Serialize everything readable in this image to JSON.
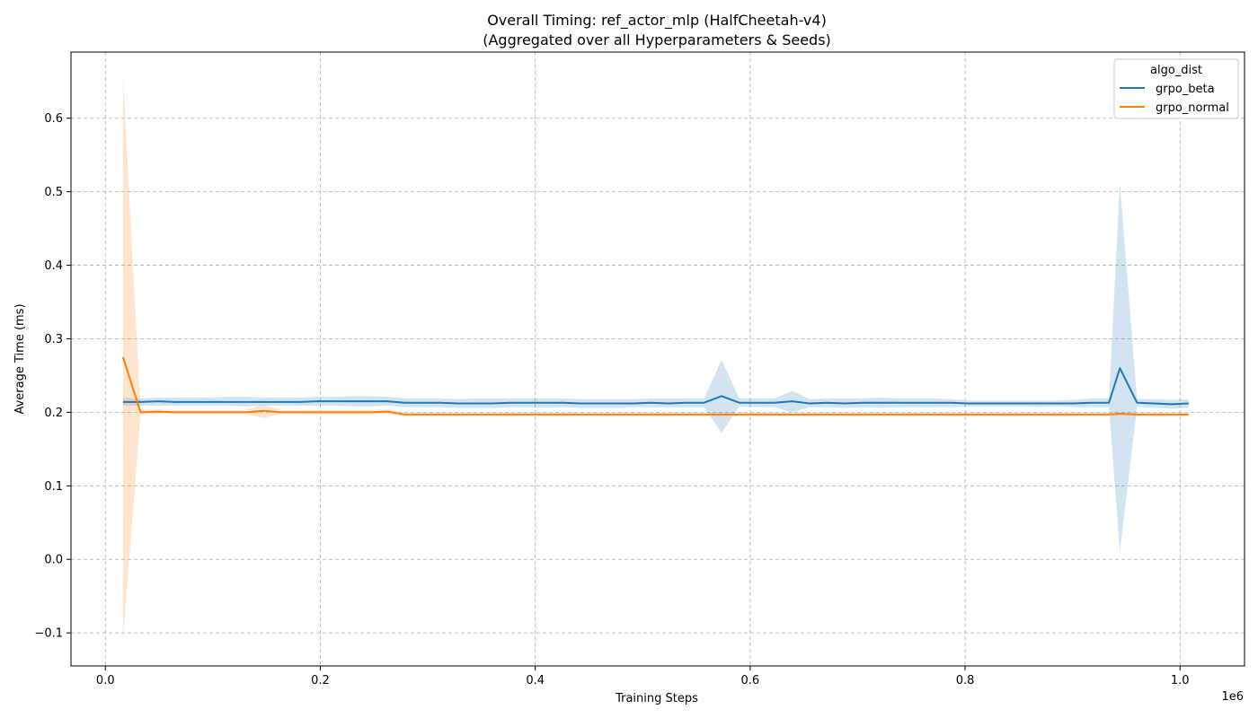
{
  "chart_data": {
    "type": "line",
    "title": "Overall Timing: ref_actor_mlp (HalfCheetah-v4)",
    "subtitle": "(Aggregated over all Hyperparameters & Seeds)",
    "xlabel": "Training Steps",
    "ylabel": "Average Time (ms)",
    "x_offset_label": "1e6",
    "xlim": [
      -32000,
      1060000
    ],
    "ylim": [
      -0.145,
      0.69
    ],
    "x_ticks": [
      0,
      200000,
      400000,
      600000,
      800000,
      1000000
    ],
    "x_tick_labels": [
      "0.0",
      "0.2",
      "0.4",
      "0.6",
      "0.8",
      "1.0"
    ],
    "y_ticks": [
      -0.1,
      0.0,
      0.1,
      0.2,
      0.3,
      0.4,
      0.5,
      0.6
    ],
    "y_tick_labels": [
      "−0.1",
      "0.0",
      "0.1",
      "0.2",
      "0.3",
      "0.4",
      "0.5",
      "0.6"
    ],
    "grid": true,
    "legend": {
      "title": "algo_dist",
      "placement": "top-right"
    },
    "series": [
      {
        "name": "grpo_beta",
        "color": "#1f77b4",
        "band_color": "#1f77b4",
        "x": [
          16384,
          32768,
          49152,
          65536,
          81920,
          98304,
          114688,
          131072,
          147456,
          163840,
          180224,
          196608,
          212992,
          229376,
          245760,
          262144,
          278528,
          294912,
          311296,
          327680,
          344064,
          360448,
          376832,
          393216,
          409600,
          425984,
          442368,
          458752,
          475136,
          491520,
          507904,
          524288,
          540672,
          557056,
          573440,
          589824,
          606208,
          622592,
          638976,
          655360,
          671744,
          688128,
          704512,
          720896,
          737280,
          753664,
          770048,
          786432,
          802816,
          819200,
          835584,
          851968,
          868352,
          884736,
          901120,
          917504,
          933888,
          944000,
          960000,
          976000,
          992000,
          1008000
        ],
        "y": [
          0.214,
          0.214,
          0.215,
          0.214,
          0.214,
          0.214,
          0.214,
          0.214,
          0.214,
          0.214,
          0.214,
          0.215,
          0.215,
          0.215,
          0.215,
          0.215,
          0.213,
          0.213,
          0.213,
          0.212,
          0.212,
          0.212,
          0.213,
          0.213,
          0.213,
          0.213,
          0.212,
          0.212,
          0.212,
          0.212,
          0.213,
          0.212,
          0.213,
          0.213,
          0.222,
          0.213,
          0.213,
          0.213,
          0.215,
          0.212,
          0.213,
          0.212,
          0.213,
          0.213,
          0.213,
          0.213,
          0.213,
          0.213,
          0.212,
          0.212,
          0.212,
          0.212,
          0.212,
          0.212,
          0.212,
          0.213,
          0.213,
          0.26,
          0.213,
          0.212,
          0.211,
          0.212
        ],
        "ci_low": [
          0.209,
          0.209,
          0.209,
          0.209,
          0.209,
          0.209,
          0.209,
          0.208,
          0.209,
          0.209,
          0.209,
          0.209,
          0.209,
          0.208,
          0.208,
          0.209,
          0.207,
          0.207,
          0.207,
          0.206,
          0.206,
          0.206,
          0.207,
          0.207,
          0.206,
          0.207,
          0.206,
          0.206,
          0.206,
          0.207,
          0.207,
          0.207,
          0.207,
          0.207,
          0.172,
          0.208,
          0.207,
          0.207,
          0.2,
          0.207,
          0.207,
          0.206,
          0.207,
          0.206,
          0.207,
          0.207,
          0.207,
          0.207,
          0.208,
          0.208,
          0.208,
          0.208,
          0.207,
          0.208,
          0.207,
          0.207,
          0.207,
          0.01,
          0.208,
          0.206,
          0.205,
          0.206
        ],
        "ci_high": [
          0.22,
          0.219,
          0.22,
          0.22,
          0.22,
          0.22,
          0.221,
          0.221,
          0.22,
          0.22,
          0.22,
          0.221,
          0.221,
          0.222,
          0.222,
          0.221,
          0.219,
          0.219,
          0.219,
          0.218,
          0.219,
          0.219,
          0.219,
          0.219,
          0.219,
          0.219,
          0.218,
          0.218,
          0.218,
          0.218,
          0.219,
          0.219,
          0.219,
          0.219,
          0.271,
          0.219,
          0.219,
          0.219,
          0.229,
          0.218,
          0.219,
          0.219,
          0.219,
          0.22,
          0.219,
          0.219,
          0.219,
          0.218,
          0.216,
          0.216,
          0.216,
          0.216,
          0.216,
          0.216,
          0.217,
          0.219,
          0.219,
          0.511,
          0.218,
          0.218,
          0.217,
          0.218
        ]
      },
      {
        "name": "grpo_normal",
        "color": "#ff7f0e",
        "band_color": "#ff7f0e",
        "x": [
          16384,
          32768,
          49152,
          65536,
          81920,
          98304,
          114688,
          131072,
          147456,
          163840,
          180224,
          196608,
          212992,
          229376,
          245760,
          262144,
          278528,
          294912,
          311296,
          327680,
          344064,
          360448,
          376832,
          393216,
          409600,
          425984,
          442368,
          458752,
          475136,
          491520,
          507904,
          524288,
          540672,
          557056,
          573440,
          589824,
          606208,
          622592,
          638976,
          655360,
          671744,
          688128,
          704512,
          720896,
          737280,
          753664,
          770048,
          786432,
          802816,
          819200,
          835584,
          851968,
          868352,
          884736,
          901120,
          917504,
          933888,
          944000,
          960000,
          976000,
          992000,
          1008000
        ],
        "y": [
          0.275,
          0.2,
          0.201,
          0.2,
          0.2,
          0.2,
          0.2,
          0.2,
          0.202,
          0.2,
          0.2,
          0.2,
          0.2,
          0.2,
          0.2,
          0.201,
          0.197,
          0.197,
          0.197,
          0.197,
          0.197,
          0.197,
          0.197,
          0.197,
          0.197,
          0.197,
          0.197,
          0.197,
          0.197,
          0.197,
          0.197,
          0.197,
          0.197,
          0.197,
          0.197,
          0.197,
          0.197,
          0.197,
          0.197,
          0.197,
          0.197,
          0.197,
          0.197,
          0.197,
          0.197,
          0.197,
          0.197,
          0.197,
          0.197,
          0.197,
          0.197,
          0.197,
          0.197,
          0.197,
          0.197,
          0.197,
          0.197,
          0.198,
          0.197,
          0.197,
          0.197,
          0.197
        ],
        "ci_low": [
          -0.108,
          0.197,
          0.198,
          0.198,
          0.198,
          0.198,
          0.198,
          0.198,
          0.192,
          0.198,
          0.198,
          0.198,
          0.198,
          0.198,
          0.198,
          0.198,
          0.195,
          0.195,
          0.195,
          0.195,
          0.195,
          0.195,
          0.195,
          0.195,
          0.195,
          0.195,
          0.195,
          0.195,
          0.195,
          0.195,
          0.195,
          0.195,
          0.195,
          0.195,
          0.195,
          0.195,
          0.195,
          0.195,
          0.195,
          0.195,
          0.195,
          0.195,
          0.195,
          0.195,
          0.195,
          0.195,
          0.195,
          0.195,
          0.195,
          0.195,
          0.195,
          0.195,
          0.195,
          0.195,
          0.195,
          0.195,
          0.195,
          0.196,
          0.195,
          0.195,
          0.195,
          0.195
        ],
        "ci_high": [
          0.657,
          0.203,
          0.204,
          0.203,
          0.203,
          0.203,
          0.203,
          0.203,
          0.211,
          0.203,
          0.203,
          0.203,
          0.203,
          0.203,
          0.203,
          0.204,
          0.199,
          0.199,
          0.199,
          0.199,
          0.199,
          0.199,
          0.199,
          0.199,
          0.199,
          0.199,
          0.199,
          0.199,
          0.199,
          0.199,
          0.199,
          0.199,
          0.199,
          0.199,
          0.199,
          0.199,
          0.199,
          0.199,
          0.199,
          0.199,
          0.199,
          0.199,
          0.199,
          0.199,
          0.199,
          0.199,
          0.199,
          0.199,
          0.199,
          0.199,
          0.199,
          0.199,
          0.199,
          0.199,
          0.199,
          0.199,
          0.199,
          0.2,
          0.199,
          0.199,
          0.199,
          0.199
        ]
      }
    ]
  }
}
